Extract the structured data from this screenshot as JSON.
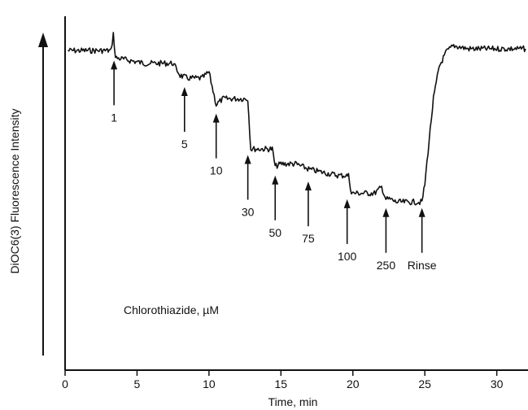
{
  "chart_data": {
    "type": "line",
    "xlabel": "Time, min",
    "ylabel": "DiOC6(3) Fluorescence Intensity",
    "xlim": [
      0,
      32
    ],
    "x_ticks": [
      "0",
      "5",
      "10",
      "15",
      "20",
      "25",
      "30"
    ],
    "x_tick_values": [
      0,
      5,
      10,
      15,
      20,
      25,
      30
    ],
    "y_ticks": [],
    "grid": false,
    "y_axis_arrow": true,
    "trace_color": "#111111",
    "series": [
      {
        "x": [
          0.2,
          1.0,
          2.0,
          3.0,
          3.2,
          3.35,
          3.5,
          4.5,
          5.5,
          6.5,
          7.5,
          8.0,
          8.5,
          9.0,
          9.5,
          10.0,
          10.5,
          10.7,
          11.0,
          12.0,
          12.7,
          12.9,
          13.2,
          14.0,
          14.4,
          14.6,
          15.0,
          16.0,
          17.0,
          18.0,
          19.0,
          19.7,
          19.9,
          20.5,
          21.5,
          22.0,
          22.3,
          22.6,
          23.0,
          24.0,
          24.5,
          24.8,
          25.0,
          25.3,
          25.6,
          26.0,
          26.5,
          27.0,
          28.0,
          29.0,
          30.0,
          31.0,
          32.0
        ],
        "y": [
          90.3,
          90.3,
          90.3,
          90.3,
          90.3,
          95.0,
          88.3,
          87.5,
          86.7,
          86.7,
          86.7,
          83.3,
          82.5,
          82.5,
          82.5,
          84.2,
          75.0,
          75.8,
          76.7,
          76.7,
          76.7,
          62.5,
          62.5,
          62.5,
          62.5,
          57.5,
          58.3,
          58.3,
          56.7,
          55.8,
          55.0,
          55.0,
          50.0,
          50.0,
          50.0,
          51.7,
          48.3,
          48.3,
          47.5,
          47.5,
          47.5,
          47.5,
          52.5,
          65.0,
          76.7,
          85.8,
          90.0,
          91.7,
          90.8,
          90.8,
          90.8,
          90.8,
          90.8
        ]
      }
    ],
    "annotations": [
      {
        "label": "1",
        "x": 3.4,
        "y": 87.5
      },
      {
        "label": "5",
        "x": 8.3,
        "y": 80.0
      },
      {
        "label": "10",
        "x": 10.5,
        "y": 72.5
      },
      {
        "label": "30",
        "x": 12.7,
        "y": 60.8
      },
      {
        "label": "50",
        "x": 14.6,
        "y": 55.0
      },
      {
        "label": "75",
        "x": 16.9,
        "y": 53.3
      },
      {
        "label": "100",
        "x": 19.6,
        "y": 48.3
      },
      {
        "label": "250",
        "x": 22.3,
        "y": 45.8
      },
      {
        "label": "Rinse",
        "x": 24.8,
        "y": 45.8
      }
    ],
    "annotation_text": "Chlorothiazide, µM",
    "ylim": [
      0,
      100
    ]
  }
}
